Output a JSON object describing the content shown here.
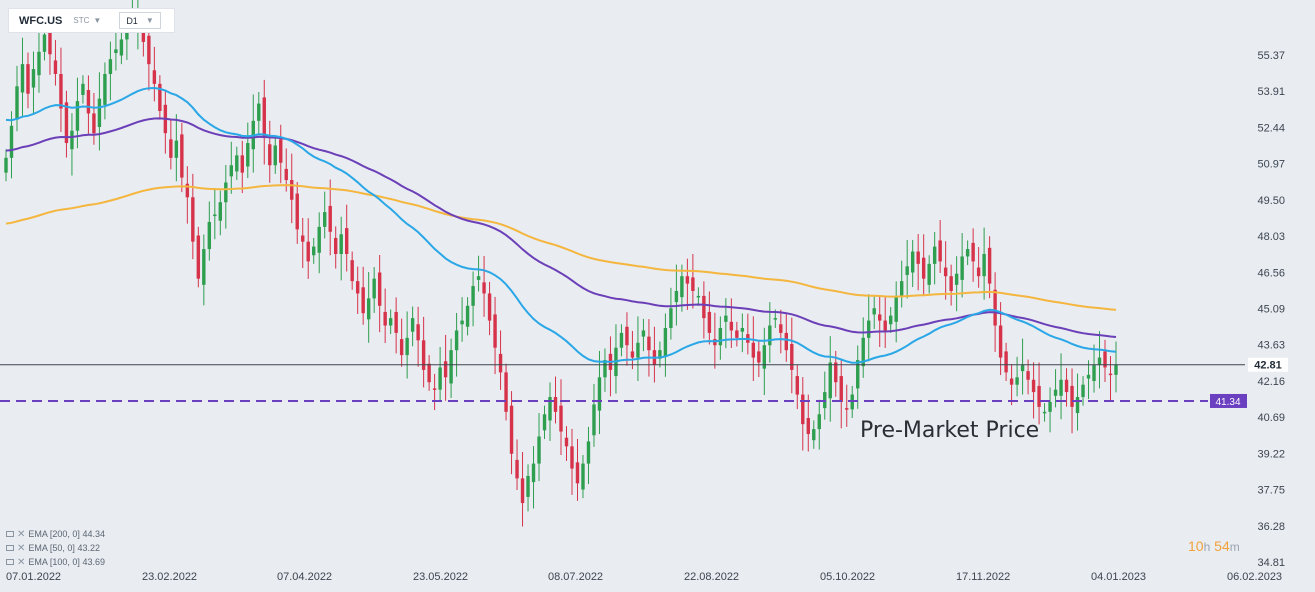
{
  "toolbar": {
    "symbol": "WFC.US",
    "type": "STC",
    "timeframe": "D1"
  },
  "chart_data": {
    "type": "candlestick",
    "y_ticks": [
      "55.37",
      "53.91",
      "52.44",
      "50.97",
      "49.50",
      "48.03",
      "46.56",
      "45.09",
      "43.63",
      "42.16",
      "40.69",
      "39.22",
      "37.75",
      "36.28",
      "34.81"
    ],
    "x_ticks": [
      "07.01.2022",
      "23.02.2022",
      "07.04.2022",
      "23.05.2022",
      "08.07.2022",
      "22.08.2022",
      "05.10.2022",
      "17.11.2022",
      "04.01.2023",
      "06.02.2023"
    ],
    "ylim": [
      34.81,
      56.8
    ],
    "current_price": 42.81,
    "support_level": 41.34,
    "annotation": "Pre-Market Price",
    "closes": [
      51.2,
      52.5,
      54.1,
      55.0,
      53.8,
      54.8,
      55.5,
      56.2,
      55.4,
      54.6,
      53.2,
      51.8,
      52.3,
      53.5,
      54.2,
      53.0,
      52.2,
      53.6,
      54.6,
      55.2,
      55.6,
      56.0,
      56.5,
      56.8,
      56.6,
      55.9,
      55.0,
      54.2,
      53.1,
      52.2,
      51.2,
      51.9,
      50.4,
      49.6,
      47.8,
      46.3,
      47.5,
      48.6,
      48.9,
      49.4,
      50.2,
      50.9,
      51.3,
      50.6,
      51.8,
      52.7,
      53.4,
      52.0,
      50.9,
      51.7,
      51.0,
      50.3,
      49.5,
      48.3,
      47.8,
      47.0,
      47.6,
      48.4,
      49.0,
      48.2,
      47.3,
      48.1,
      47.3,
      46.2,
      45.7,
      44.9,
      45.5,
      46.3,
      45.2,
      44.4,
      44.7,
      44.1,
      43.2,
      43.9,
      44.7,
      43.8,
      42.6,
      42.1,
      41.8,
      42.7,
      42.3,
      43.4,
      44.2,
      44.6,
      45.2,
      46.0,
      46.4,
      45.7,
      44.6,
      43.5,
      42.5,
      40.9,
      39.2,
      38.2,
      37.2,
      38.3,
      38.8,
      39.9,
      40.8,
      41.5,
      40.9,
      40.1,
      39.5,
      38.6,
      38.0,
      38.8,
      39.7,
      41.2,
      42.3,
      43.0,
      42.6,
      43.5,
      44.1,
      43.6,
      43.1,
      43.7,
      44.2,
      43.4,
      42.8,
      43.4,
      44.3,
      45.1,
      45.8,
      46.4,
      46.1,
      45.8,
      45.6,
      44.7,
      44.1,
      43.6,
      44.3,
      44.8,
      44.2,
      43.9,
      44.3,
      43.7,
      43.1,
      42.9,
      43.6,
      44.4,
      44.7,
      44.1,
      43.4,
      42.6,
      41.6,
      40.4,
      40.0,
      40.2,
      40.8,
      41.7,
      42.9,
      42.1,
      41.3,
      41.0,
      41.6,
      43.0,
      43.9,
      44.6,
      45.1,
      44.6,
      44.2,
      44.8,
      45.6,
      46.2,
      46.8,
      47.4,
      46.9,
      46.3,
      46.9,
      47.6,
      47.0,
      46.4,
      45.8,
      46.5,
      47.2,
      47.5,
      47.0,
      46.4,
      47.3,
      46.1,
      44.4,
      43.1,
      42.5,
      42.0,
      42.3,
      42.8,
      42.2,
      41.7,
      41.1,
      40.9,
      41.3,
      41.8,
      42.2,
      41.7,
      41.1,
      41.5,
      42.0,
      42.4,
      42.8,
      43.1,
      42.7,
      42.4,
      42.8
    ]
  },
  "indicators": [
    {
      "name": "EMA [200,  0]",
      "value": "44.34",
      "color": "#f4b63e"
    },
    {
      "name": "EMA [50,  0]",
      "value": "43.22",
      "color": "#2aa7e6"
    },
    {
      "name": "EMA [100,  0]",
      "value": "43.69",
      "color": "#6b3fb8"
    }
  ],
  "timer": {
    "hours": "10",
    "hours_unit": "h",
    "minutes": "54",
    "minutes_unit": "m"
  },
  "colors": {
    "up": "#2e9e4f",
    "down": "#d6334a",
    "support": "#6a3fc0"
  }
}
